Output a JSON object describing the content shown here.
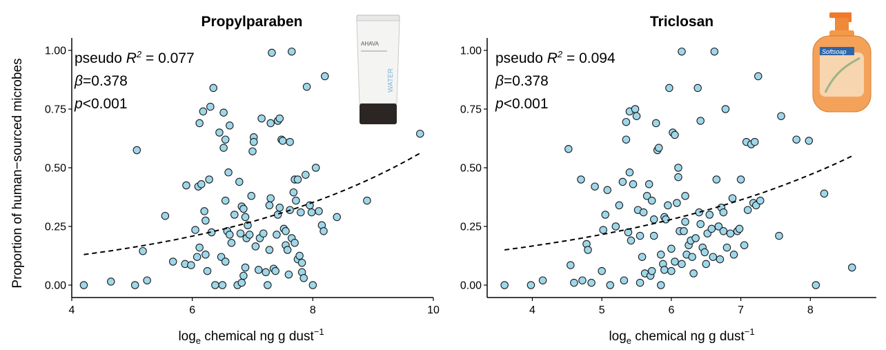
{
  "figure": {
    "ylabel": "Proportion of human−sourced microbes"
  },
  "chart_data": [
    {
      "type": "scatter",
      "title": "Propylparaben",
      "xlabel": "log",
      "xlabel_sub": "e",
      "xlabel_rest": " chemical ng g dust",
      "xlabel_sup": "−1",
      "xlim": [
        4,
        10
      ],
      "ylim": [
        0,
        1
      ],
      "xticks": [
        4,
        6,
        8,
        10
      ],
      "yticks": [
        "0.00",
        "0.25",
        "0.50",
        "0.75",
        "1.00"
      ],
      "grid": false,
      "stats": {
        "r2_label": "pseudo ",
        "r2_symbol": "R",
        "r2_sup": "2",
        "r2_value": " = 0.077",
        "beta": "β=0.378",
        "p": "p<0.001"
      },
      "inset_image": "lotion-tube-icon",
      "inset_brand": "AHAVA",
      "inset_side_text": "WATER",
      "fit_line": {
        "style": "dashed",
        "x": [
          4.2,
          9.8
        ],
        "y": [
          0.13,
          0.565
        ]
      },
      "point_color": "#9fd7ea",
      "points": [
        [
          4.2,
          0.0
        ],
        [
          4.65,
          0.015
        ],
        [
          5.05,
          0.0
        ],
        [
          5.08,
          0.575
        ],
        [
          5.18,
          0.145
        ],
        [
          5.25,
          0.02
        ],
        [
          5.55,
          0.295
        ],
        [
          5.68,
          0.1
        ],
        [
          5.88,
          0.09
        ],
        [
          5.9,
          0.425
        ],
        [
          5.98,
          0.085
        ],
        [
          6.05,
          0.235
        ],
        [
          6.08,
          0.12
        ],
        [
          6.1,
          0.42
        ],
        [
          6.12,
          0.69
        ],
        [
          6.12,
          0.16
        ],
        [
          6.15,
          0.43
        ],
        [
          6.18,
          0.74
        ],
        [
          6.2,
          0.315
        ],
        [
          6.22,
          0.275
        ],
        [
          6.22,
          0.13
        ],
        [
          6.25,
          0.06
        ],
        [
          6.28,
          0.45
        ],
        [
          6.3,
          0.76
        ],
        [
          6.32,
          0.225
        ],
        [
          6.35,
          0.84
        ],
        [
          6.38,
          0.0
        ],
        [
          6.45,
          0.65
        ],
        [
          6.48,
          0.12
        ],
        [
          6.5,
          0.0
        ],
        [
          6.52,
          0.585
        ],
        [
          6.52,
          0.735
        ],
        [
          6.55,
          0.62
        ],
        [
          6.55,
          0.36
        ],
        [
          6.55,
          0.1
        ],
        [
          6.58,
          0.23
        ],
        [
          6.6,
          0.48
        ],
        [
          6.62,
          0.215
        ],
        [
          6.62,
          0.68
        ],
        [
          6.65,
          0.18
        ],
        [
          6.7,
          0.3
        ],
        [
          6.75,
          0.0
        ],
        [
          6.78,
          0.44
        ],
        [
          6.8,
          0.22
        ],
        [
          6.82,
          0.335
        ],
        [
          6.82,
          0.01
        ],
        [
          6.85,
          0.325
        ],
        [
          6.85,
          0.04
        ],
        [
          6.88,
          0.29
        ],
        [
          6.88,
          0.075
        ],
        [
          6.9,
          0.2
        ],
        [
          6.92,
          0.255
        ],
        [
          6.95,
          0.215
        ],
        [
          6.98,
          0.38
        ],
        [
          7.0,
          0.57
        ],
        [
          7.02,
          0.63
        ],
        [
          7.02,
          0.61
        ],
        [
          7.05,
          0.165
        ],
        [
          7.1,
          0.065
        ],
        [
          7.12,
          0.2
        ],
        [
          7.15,
          0.71
        ],
        [
          7.18,
          0.22
        ],
        [
          7.22,
          0.055
        ],
        [
          7.25,
          0.0
        ],
        [
          7.28,
          0.15
        ],
        [
          7.28,
          0.34
        ],
        [
          7.3,
          0.37
        ],
        [
          7.3,
          0.69
        ],
        [
          7.32,
          0.99
        ],
        [
          7.35,
          0.07
        ],
        [
          7.38,
          0.06
        ],
        [
          7.4,
          0.215
        ],
        [
          7.42,
          0.7
        ],
        [
          7.42,
          0.3
        ],
        [
          7.45,
          0.71
        ],
        [
          7.45,
          0.33
        ],
        [
          7.48,
          0.62
        ],
        [
          7.5,
          0.615
        ],
        [
          7.52,
          0.24
        ],
        [
          7.55,
          0.17
        ],
        [
          7.55,
          0.23
        ],
        [
          7.58,
          0.15
        ],
        [
          7.6,
          0.045
        ],
        [
          7.62,
          0.32
        ],
        [
          7.62,
          0.61
        ],
        [
          7.65,
          0.995
        ],
        [
          7.65,
          0.2
        ],
        [
          7.68,
          0.395
        ],
        [
          7.7,
          0.45
        ],
        [
          7.7,
          0.18
        ],
        [
          7.72,
          0.36
        ],
        [
          7.75,
          0.45
        ],
        [
          7.75,
          0.11
        ],
        [
          7.78,
          0.125
        ],
        [
          7.8,
          0.31
        ],
        [
          7.82,
          0.095
        ],
        [
          7.82,
          0.055
        ],
        [
          7.85,
          0.03
        ],
        [
          7.88,
          0.47
        ],
        [
          7.9,
          0.845
        ],
        [
          7.95,
          0.34
        ],
        [
          7.98,
          0.31
        ],
        [
          8.0,
          0.0
        ],
        [
          8.05,
          0.5
        ],
        [
          8.1,
          0.315
        ],
        [
          8.15,
          0.255
        ],
        [
          8.18,
          0.23
        ],
        [
          8.2,
          0.89
        ],
        [
          8.4,
          0.29
        ],
        [
          8.9,
          0.36
        ],
        [
          9.78,
          0.645
        ]
      ]
    },
    {
      "type": "scatter",
      "title": "Triclosan",
      "xlabel": "log",
      "xlabel_sub": "e",
      "xlabel_rest": " chemical ng g dust",
      "xlabel_sup": "−1",
      "xlim": [
        3.35,
        8.95
      ],
      "ylim": [
        0,
        1
      ],
      "xticks": [
        4,
        5,
        6,
        7,
        8
      ],
      "yticks": [
        "0.00",
        "0.25",
        "0.50",
        "0.75",
        "1.00"
      ],
      "grid": false,
      "stats": {
        "r2_label": "pseudo ",
        "r2_symbol": "R",
        "r2_sup": "2",
        "r2_value": " = 0.094",
        "beta": "β=0.378",
        "p": "p<0.001"
      },
      "inset_image": "soap-dispenser-icon",
      "inset_brand": "Softsoap",
      "fit_line": {
        "style": "dashed",
        "x": [
          3.6,
          8.6
        ],
        "y": [
          0.15,
          0.55
        ]
      },
      "point_color": "#9fd7ea",
      "points": [
        [
          3.6,
          0.0
        ],
        [
          3.98,
          0.0
        ],
        [
          4.15,
          0.02
        ],
        [
          4.52,
          0.58
        ],
        [
          4.55,
          0.085
        ],
        [
          4.6,
          0.01
        ],
        [
          4.7,
          0.45
        ],
        [
          4.72,
          0.02
        ],
        [
          4.78,
          0.175
        ],
        [
          4.8,
          0.15
        ],
        [
          4.85,
          0.01
        ],
        [
          4.9,
          0.42
        ],
        [
          5.0,
          0.06
        ],
        [
          5.02,
          0.235
        ],
        [
          5.05,
          0.3
        ],
        [
          5.08,
          0.405
        ],
        [
          5.12,
          0.0
        ],
        [
          5.2,
          0.25
        ],
        [
          5.25,
          0.34
        ],
        [
          5.3,
          0.44
        ],
        [
          5.32,
          0.02
        ],
        [
          5.35,
          0.62
        ],
        [
          5.35,
          0.695
        ],
        [
          5.38,
          0.225
        ],
        [
          5.4,
          0.74
        ],
        [
          5.4,
          0.48
        ],
        [
          5.42,
          0.19
        ],
        [
          5.45,
          0.43
        ],
        [
          5.48,
          0.75
        ],
        [
          5.5,
          0.72
        ],
        [
          5.52,
          0.32
        ],
        [
          5.55,
          0.21
        ],
        [
          5.55,
          0.01
        ],
        [
          5.58,
          0.12
        ],
        [
          5.6,
          0.31
        ],
        [
          5.62,
          0.05
        ],
        [
          5.65,
          0.38
        ],
        [
          5.68,
          0.43
        ],
        [
          5.7,
          0.04
        ],
        [
          5.72,
          0.06
        ],
        [
          5.72,
          0.36
        ],
        [
          5.75,
          0.28
        ],
        [
          5.75,
          0.21
        ],
        [
          5.78,
          0.69
        ],
        [
          5.8,
          0.575
        ],
        [
          5.82,
          0.585
        ],
        [
          5.85,
          0.13
        ],
        [
          5.85,
          0.0
        ],
        [
          5.88,
          0.09
        ],
        [
          5.9,
          0.065
        ],
        [
          5.9,
          0.29
        ],
        [
          5.92,
          0.28
        ],
        [
          5.95,
          0.34
        ],
        [
          5.97,
          0.84
        ],
        [
          6.0,
          0.06
        ],
        [
          6.0,
          0.155
        ],
        [
          6.02,
          0.65
        ],
        [
          6.05,
          0.64
        ],
        [
          6.05,
          0.1
        ],
        [
          6.08,
          0.35
        ],
        [
          6.1,
          0.5
        ],
        [
          6.1,
          0.46
        ],
        [
          6.12,
          0.23
        ],
        [
          6.15,
          0.995
        ],
        [
          6.15,
          0.09
        ],
        [
          6.18,
          0.23
        ],
        [
          6.2,
          0.27
        ],
        [
          6.2,
          0.38
        ],
        [
          6.22,
          0.13
        ],
        [
          6.25,
          0.17
        ],
        [
          6.28,
          0.19
        ],
        [
          6.3,
          0.12
        ],
        [
          6.32,
          0.05
        ],
        [
          6.35,
          0.2
        ],
        [
          6.38,
          0.84
        ],
        [
          6.4,
          0.31
        ],
        [
          6.42,
          0.26
        ],
        [
          6.42,
          0.7
        ],
        [
          6.45,
          0.16
        ],
        [
          6.48,
          0.14
        ],
        [
          6.5,
          0.09
        ],
        [
          6.52,
          0.22
        ],
        [
          6.55,
          0.3
        ],
        [
          6.58,
          0.24
        ],
        [
          6.6,
          0.12
        ],
        [
          6.62,
          0.995
        ],
        [
          6.65,
          0.45
        ],
        [
          6.68,
          0.25
        ],
        [
          6.7,
          0.11
        ],
        [
          6.72,
          0.33
        ],
        [
          6.75,
          0.31
        ],
        [
          6.75,
          0.23
        ],
        [
          6.78,
          0.75
        ],
        [
          6.8,
          0.16
        ],
        [
          6.85,
          0.22
        ],
        [
          6.88,
          0.37
        ],
        [
          6.9,
          0.13
        ],
        [
          6.95,
          0.23
        ],
        [
          6.98,
          0.24
        ],
        [
          7.0,
          0.45
        ],
        [
          7.05,
          0.17
        ],
        [
          7.08,
          0.61
        ],
        [
          7.1,
          0.32
        ],
        [
          7.15,
          0.6
        ],
        [
          7.18,
          0.35
        ],
        [
          7.2,
          0.61
        ],
        [
          7.22,
          0.34
        ],
        [
          7.25,
          0.89
        ],
        [
          7.28,
          0.36
        ],
        [
          7.55,
          0.21
        ],
        [
          7.58,
          0.72
        ],
        [
          7.8,
          0.62
        ],
        [
          7.98,
          0.615
        ],
        [
          8.08,
          0.0
        ],
        [
          8.2,
          0.39
        ],
        [
          8.6,
          0.075
        ]
      ]
    }
  ]
}
